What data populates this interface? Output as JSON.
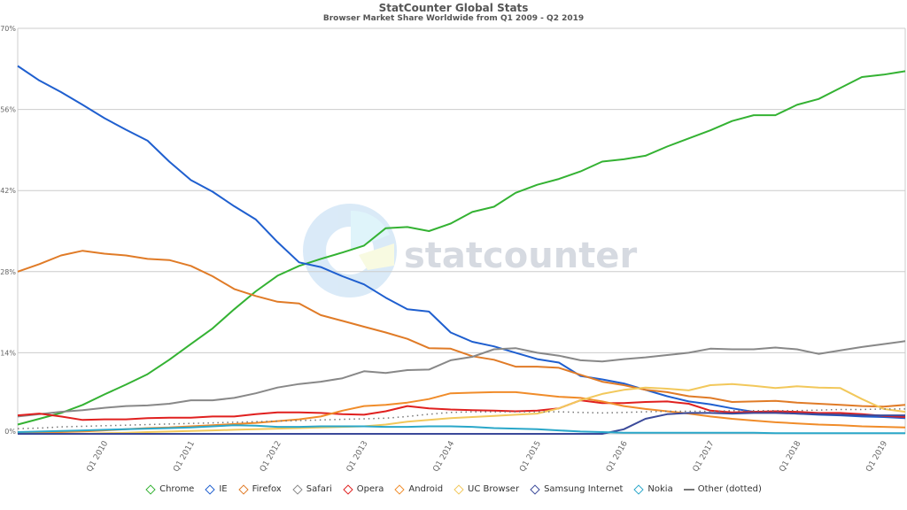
{
  "header": {
    "title": "StatCounter Global Stats",
    "subtitle": "Browser Market Share Worldwide from Q1 2009 - Q2 2019"
  },
  "watermark": "statcounter",
  "legend": [
    {
      "label": "Chrome",
      "color": "#34b233",
      "marker": "diamond"
    },
    {
      "label": "IE",
      "color": "#1f5fcf",
      "marker": "diamond"
    },
    {
      "label": "Firefox",
      "color": "#e07b27",
      "marker": "diamond"
    },
    {
      "label": "Safari",
      "color": "#888888",
      "marker": "diamond"
    },
    {
      "label": "Opera",
      "color": "#e0201f",
      "marker": "diamond"
    },
    {
      "label": "Android",
      "color": "#f08c2a",
      "marker": "diamond"
    },
    {
      "label": "UC Browser",
      "color": "#f2c85b",
      "marker": "diamond"
    },
    {
      "label": "Samsung Internet",
      "color": "#3b4a9a",
      "marker": "diamond"
    },
    {
      "label": "Nokia",
      "color": "#2aa7c9",
      "marker": "diamond"
    },
    {
      "label": "Other (dotted)",
      "color": "#777777",
      "marker": "line"
    }
  ],
  "chart_data": {
    "type": "line",
    "title": "StatCounter Global Stats",
    "subtitle": "Browser Market Share Worldwide from Q1 2009 - Q2 2019",
    "xlabel": "",
    "ylabel": "",
    "ylim": [
      0,
      70
    ],
    "yticks": [
      "0%",
      "14%",
      "28%",
      "42%",
      "56%",
      "70%"
    ],
    "xticks": [
      "Q1 2010",
      "Q1 2011",
      "Q1 2012",
      "Q1 2013",
      "Q1 2014",
      "Q1 2015",
      "Q1 2016",
      "Q1 2017",
      "Q1 2018",
      "Q1 2019"
    ],
    "grid": true,
    "legend_position": "bottom",
    "x": [
      "Q1 2009",
      "Q2 2009",
      "Q3 2009",
      "Q4 2009",
      "Q1 2010",
      "Q2 2010",
      "Q3 2010",
      "Q4 2010",
      "Q1 2011",
      "Q2 2011",
      "Q3 2011",
      "Q4 2011",
      "Q1 2012",
      "Q2 2012",
      "Q3 2012",
      "Q4 2012",
      "Q1 2013",
      "Q2 2013",
      "Q3 2013",
      "Q4 2013",
      "Q1 2014",
      "Q2 2014",
      "Q3 2014",
      "Q4 2014",
      "Q1 2015",
      "Q2 2015",
      "Q3 2015",
      "Q4 2015",
      "Q1 2016",
      "Q2 2016",
      "Q3 2016",
      "Q4 2016",
      "Q1 2017",
      "Q2 2017",
      "Q3 2017",
      "Q4 2017",
      "Q1 2018",
      "Q2 2018",
      "Q3 2018",
      "Q4 2018",
      "Q1 2019",
      "Q2 2019"
    ],
    "series": [
      {
        "name": "Chrome",
        "color": "#34b233",
        "dotted": false,
        "values": [
          1.6,
          2.6,
          3.6,
          5.0,
          6.8,
          8.5,
          10.3,
          12.8,
          15.5,
          18.2,
          21.5,
          24.6,
          27.3,
          29.0,
          30.2,
          31.3,
          32.5,
          35.5,
          35.7,
          35.0,
          36.3,
          38.3,
          39.2,
          41.6,
          43.0,
          44.0,
          45.3,
          47.0,
          47.4,
          48.0,
          49.6,
          51.0,
          52.4,
          54.0,
          55.0,
          55.0,
          56.8,
          57.8,
          59.7,
          61.6,
          62.0,
          62.6
        ]
      },
      {
        "name": "IE",
        "color": "#1f5fcf",
        "dotted": false,
        "values": [
          63.5,
          61.0,
          59.0,
          56.8,
          54.5,
          52.5,
          50.6,
          47.0,
          43.8,
          41.8,
          39.3,
          37.0,
          33.1,
          29.6,
          28.8,
          27.2,
          25.8,
          23.5,
          21.5,
          21.1,
          17.5,
          15.9,
          15.1,
          14.0,
          12.9,
          12.3,
          10.0,
          9.4,
          8.7,
          7.6,
          6.5,
          5.6,
          5.1,
          4.4,
          3.8,
          3.7,
          3.5,
          3.3,
          3.2,
          3.0,
          2.9,
          2.7
        ]
      },
      {
        "name": "Firefox",
        "color": "#e07b27",
        "dotted": false,
        "values": [
          28.0,
          29.3,
          30.8,
          31.6,
          31.1,
          30.8,
          30.2,
          30.0,
          29.0,
          27.2,
          25.0,
          23.8,
          22.8,
          22.5,
          20.5,
          19.5,
          18.5,
          17.5,
          16.4,
          14.8,
          14.7,
          13.4,
          12.8,
          11.6,
          11.6,
          11.4,
          10.2,
          9.0,
          8.4,
          7.6,
          7.2,
          6.5,
          6.2,
          5.5,
          5.6,
          5.7,
          5.4,
          5.2,
          5.0,
          4.8,
          4.7,
          5.0
        ]
      },
      {
        "name": "Safari",
        "color": "#888888",
        "dotted": false,
        "values": [
          3.0,
          3.4,
          3.8,
          4.1,
          4.5,
          4.8,
          4.9,
          5.2,
          5.8,
          5.8,
          6.2,
          7.0,
          8.0,
          8.6,
          9.0,
          9.6,
          10.8,
          10.5,
          11.0,
          11.1,
          12.7,
          13.3,
          14.6,
          14.8,
          14.0,
          13.5,
          12.7,
          12.5,
          12.9,
          13.2,
          13.6,
          14.0,
          14.7,
          14.6,
          14.6,
          14.9,
          14.6,
          13.8,
          14.4,
          15.0,
          15.5,
          16.0
        ]
      },
      {
        "name": "Opera",
        "color": "#e0201f",
        "dotted": false,
        "values": [
          3.2,
          3.5,
          3.0,
          2.4,
          2.5,
          2.5,
          2.7,
          2.8,
          2.8,
          3.0,
          3.0,
          3.4,
          3.7,
          3.7,
          3.6,
          3.4,
          3.3,
          3.9,
          4.8,
          4.4,
          4.2,
          4.1,
          4.0,
          3.9,
          4.0,
          4.4,
          5.8,
          5.3,
          5.3,
          5.5,
          5.6,
          5.2,
          4.0,
          3.7,
          3.8,
          3.9,
          3.8,
          3.6,
          3.6,
          3.4,
          3.1,
          2.9
        ]
      },
      {
        "name": "Android",
        "color": "#f08c2a",
        "dotted": false,
        "values": [
          0.1,
          0.2,
          0.3,
          0.4,
          0.6,
          0.8,
          1.0,
          1.1,
          1.3,
          1.5,
          1.7,
          1.9,
          2.2,
          2.5,
          3.0,
          4.0,
          4.8,
          5.0,
          5.4,
          6.0,
          7.0,
          7.1,
          7.2,
          7.2,
          6.8,
          6.4,
          6.2,
          5.6,
          4.8,
          4.3,
          3.9,
          3.5,
          3.0,
          2.6,
          2.3,
          2.0,
          1.8,
          1.6,
          1.5,
          1.3,
          1.2,
          1.1
        ]
      },
      {
        "name": "UC Browser",
        "color": "#f2c85b",
        "dotted": false,
        "values": [
          0.0,
          0.0,
          0.0,
          0.0,
          0.1,
          0.2,
          0.3,
          0.4,
          0.5,
          0.6,
          0.7,
          0.8,
          0.9,
          1.0,
          1.1,
          1.2,
          1.3,
          1.6,
          2.1,
          2.4,
          2.7,
          2.9,
          3.1,
          3.3,
          3.5,
          4.4,
          5.8,
          6.9,
          7.6,
          8.0,
          7.8,
          7.5,
          8.4,
          8.6,
          8.3,
          7.9,
          8.2,
          8.0,
          7.9,
          6.0,
          4.3,
          3.8
        ]
      },
      {
        "name": "Samsung Internet",
        "color": "#3b4a9a",
        "dotted": false,
        "values": [
          0,
          0,
          0,
          0,
          0,
          0,
          0,
          0,
          0,
          0,
          0,
          0,
          0,
          0,
          0,
          0,
          0,
          0,
          0,
          0,
          0,
          0,
          0,
          0,
          0,
          0,
          0,
          0,
          0.8,
          2.6,
          3.4,
          3.6,
          3.6,
          3.5,
          3.6,
          3.6,
          3.5,
          3.4,
          3.3,
          3.2,
          3.2,
          3.2
        ]
      },
      {
        "name": "Nokia",
        "color": "#2aa7c9",
        "dotted": false,
        "values": [
          0.3,
          0.4,
          0.5,
          0.6,
          0.7,
          0.8,
          0.9,
          1.0,
          1.1,
          1.3,
          1.5,
          1.4,
          1.2,
          1.2,
          1.3,
          1.3,
          1.3,
          1.2,
          1.2,
          1.3,
          1.3,
          1.2,
          1.0,
          0.9,
          0.8,
          0.6,
          0.4,
          0.3,
          0.2,
          0.2,
          0.2,
          0.2,
          0.2,
          0.2,
          0.2,
          0.1,
          0.1,
          0.1,
          0.1,
          0.1,
          0.1,
          0.1
        ]
      },
      {
        "name": "Other",
        "color": "#777777",
        "dotted": true,
        "values": [
          0.9,
          1.0,
          1.2,
          1.3,
          1.4,
          1.5,
          1.6,
          1.7,
          1.8,
          1.9,
          2.0,
          2.1,
          2.2,
          2.3,
          2.4,
          2.5,
          2.6,
          2.7,
          3.0,
          3.4,
          3.7,
          3.8,
          3.8,
          3.8,
          3.8,
          3.8,
          3.7,
          3.6,
          3.7,
          3.8,
          3.9,
          3.9,
          3.9,
          4.0,
          4.0,
          4.0,
          4.0,
          4.1,
          4.2,
          4.2,
          4.3,
          4.3
        ]
      }
    ]
  }
}
